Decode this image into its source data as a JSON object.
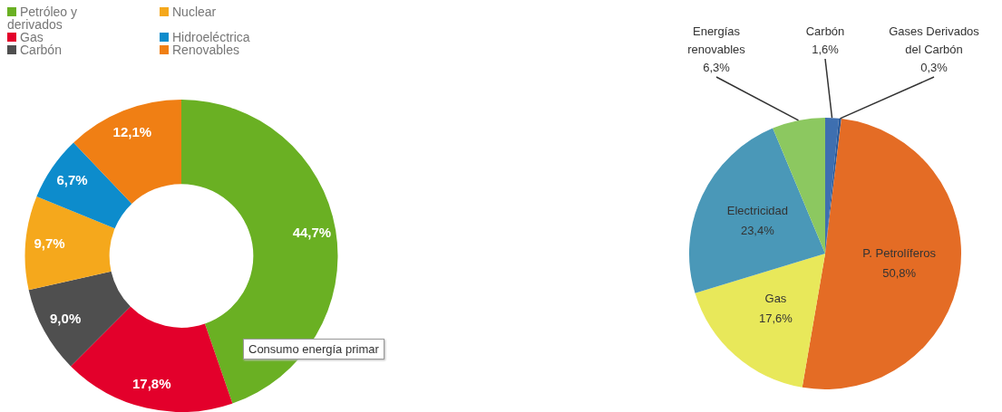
{
  "chart_data": [
    {
      "type": "donut",
      "categories": [
        "Petróleo y derivados",
        "Gas",
        "Carbón",
        "Nuclear",
        "Hidroeléctrica",
        "Renovables"
      ],
      "values": [
        44.7,
        17.8,
        9.0,
        9.7,
        6.7,
        12.1
      ],
      "value_labels": [
        "44,7%",
        "17,8%",
        "9,0%",
        "9,7%",
        "6,7%",
        "12,1%"
      ],
      "colors": [
        "#6ab023",
        "#e3002b",
        "#4f4f4f",
        "#f5a81c",
        "#0d8ccc",
        "#f07f14"
      ],
      "legend": "top left",
      "annotations": [
        "Consumo energía primar"
      ]
    },
    {
      "type": "pie",
      "categories": [
        "Carbón",
        "Gases Derivados del Carbón",
        "P. Petrolíferos",
        "Gas",
        "Electricidad",
        "Energías renovables"
      ],
      "values": [
        1.6,
        0.3,
        50.8,
        17.6,
        23.4,
        6.3
      ],
      "value_labels": [
        "1,6%",
        "0,3%",
        "50,8%",
        "17,6%",
        "23,4%",
        "6,3%"
      ],
      "colors": [
        "#3e6fb0",
        "#2a5a9a",
        "#e46c25",
        "#e8e85a",
        "#4a98b8",
        "#8cc860"
      ]
    }
  ]
}
